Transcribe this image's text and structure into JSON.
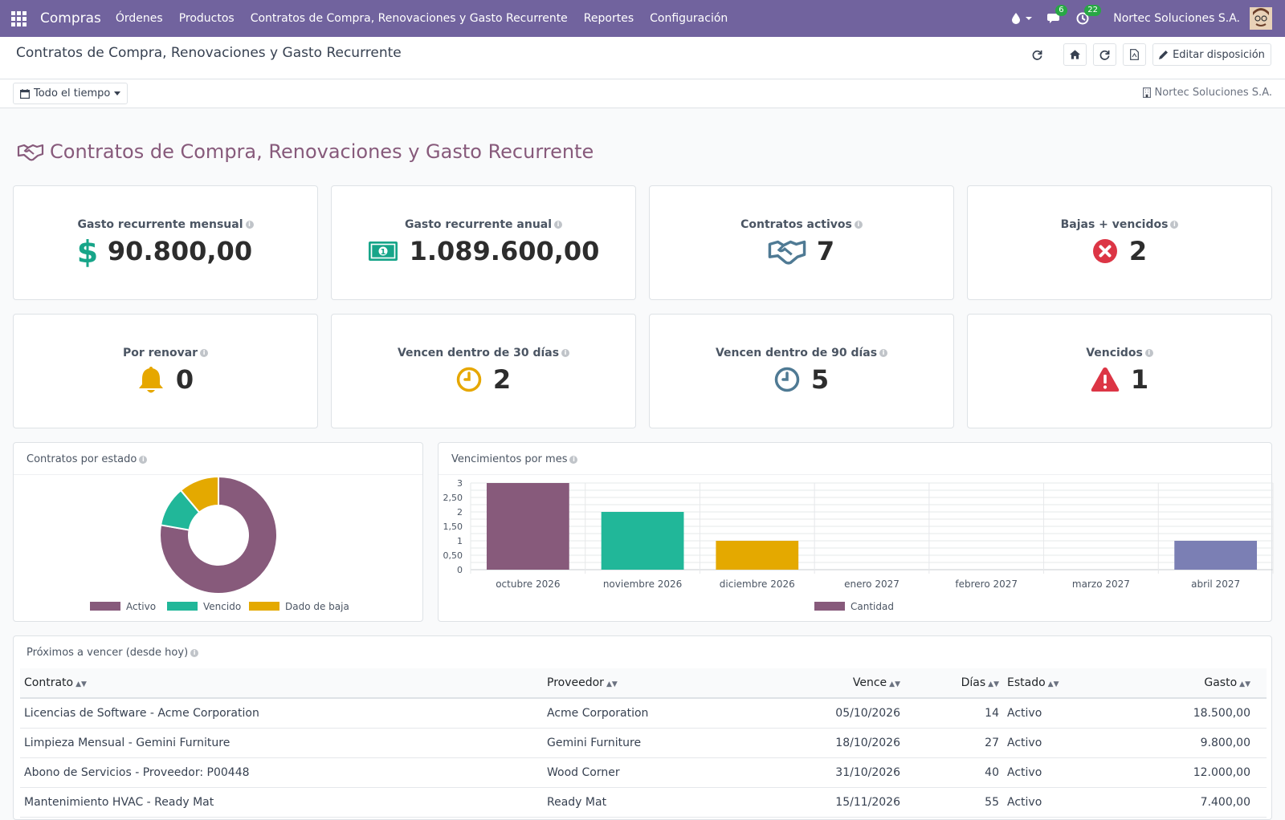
{
  "navbar": {
    "app_name": "Compras",
    "menu": [
      "Órdenes",
      "Productos",
      "Contratos de Compra, Renovaciones y Gasto Recurrente",
      "Reportes",
      "Configuración"
    ],
    "messages_badge": "6",
    "activities_badge": "22",
    "company": "Nortec Soluciones S.A."
  },
  "control_panel": {
    "title": "Contratos de Compra, Renovaciones y Gasto Recurrente",
    "edit_layout_label": "Editar disposición"
  },
  "filters": {
    "date_range": "Todo el tiempo",
    "company": "Nortec Soluciones S.A."
  },
  "dashboard": {
    "title": "Contratos de Compra, Renovaciones y Gasto Recurrente",
    "kpis": [
      {
        "label": "Gasto recurrente mensual",
        "value": "90.800,00",
        "icon": "dollar-icon",
        "color": "#17a589"
      },
      {
        "label": "Gasto recurrente anual",
        "value": "1.089.600,00",
        "icon": "money-bill-icon",
        "color": "#17a589"
      },
      {
        "label": "Contratos activos",
        "value": "7",
        "icon": "handshake-icon",
        "color": "#4f7a94"
      },
      {
        "label": "Bajas + vencidos",
        "value": "2",
        "icon": "times-circle-icon",
        "color": "#dc3545"
      },
      {
        "label": "Por renovar",
        "value": "0",
        "icon": "bell-icon",
        "color": "#e6a700"
      },
      {
        "label": "Vencen dentro de 30 días",
        "value": "2",
        "icon": "clock-icon",
        "color": "#e6a700"
      },
      {
        "label": "Vencen dentro de 90 días",
        "value": "5",
        "icon": "clock-icon",
        "color": "#4f7a94"
      },
      {
        "label": "Vencidos",
        "value": "1",
        "icon": "warning-icon",
        "color": "#dc3545"
      }
    ]
  },
  "chart_data": [
    {
      "type": "pie",
      "title": "Contratos por estado",
      "categories": [
        "Activo",
        "Vencido",
        "Dado de baja"
      ],
      "values": [
        7,
        1,
        1
      ],
      "colors": [
        "#875a7b",
        "#21b799",
        "#e4a900"
      ],
      "donut": true,
      "legend": "bottom"
    },
    {
      "type": "bar",
      "title": "Vencimientos por mes",
      "categories": [
        "octubre 2026",
        "noviembre 2026",
        "diciembre 2026",
        "enero 2027",
        "febrero 2027",
        "marzo 2027",
        "abril 2027"
      ],
      "series": [
        {
          "name": "Cantidad",
          "values": [
            3,
            2,
            1,
            0,
            0,
            0,
            1
          ]
        }
      ],
      "bar_colors": [
        "#875a7b",
        "#21b799",
        "#e4a900",
        "#875a7b",
        "#875a7b",
        "#875a7b",
        "#7b7fb4"
      ],
      "legend_color": "#875a7b",
      "ylim": [
        0,
        3
      ],
      "yticks": [
        "0",
        "0,50",
        "1",
        "1,50",
        "2",
        "2,50",
        "3"
      ],
      "grid": true,
      "legend": "bottom"
    }
  ],
  "table": {
    "title": "Próximos a vencer (desde hoy)",
    "headers": [
      "Contrato",
      "Proveedor",
      "Vence",
      "Días",
      "Estado",
      "Gasto"
    ],
    "rows": [
      [
        "Licencias de Software - Acme Corporation",
        "Acme Corporation",
        "05/10/2026",
        "14",
        "Activo",
        "18.500,00"
      ],
      [
        "Limpieza Mensual - Gemini Furniture",
        "Gemini Furniture",
        "18/10/2026",
        "27",
        "Activo",
        "9.800,00"
      ],
      [
        "Abono de Servicios - Proveedor: P00448",
        "Wood Corner",
        "31/10/2026",
        "40",
        "Activo",
        "12.000,00"
      ],
      [
        "Mantenimiento HVAC - Ready Mat",
        "Ready Mat",
        "15/11/2026",
        "55",
        "Activo",
        "7.400,00"
      ]
    ]
  }
}
